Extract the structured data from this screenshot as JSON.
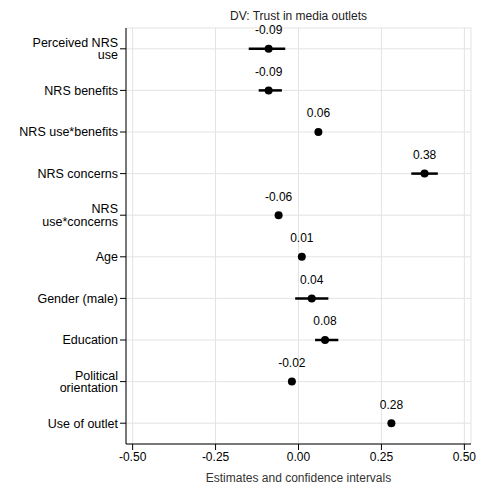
{
  "chart_data": {
    "type": "scatter",
    "title": "DV: Trust in media outlets",
    "x_label": "Estimates and confidence intervals",
    "categories": [
      "Perceived NRS use",
      "NRS benefits",
      "NRS use*benefits",
      "NRS concerns",
      "NRS use*concerns",
      "Age",
      "Gender (male)",
      "Education",
      "Political orientation",
      "Use of outlet"
    ],
    "values": [
      -0.09,
      -0.09,
      0.06,
      0.38,
      -0.06,
      0.01,
      0.04,
      0.08,
      -0.02,
      0.28
    ],
    "lower": [
      -0.15,
      -0.12,
      0.05,
      0.34,
      -0.07,
      0.0,
      -0.01,
      0.05,
      -0.03,
      0.27
    ],
    "upper": [
      -0.04,
      -0.05,
      0.07,
      0.42,
      -0.05,
      0.01,
      0.09,
      0.12,
      -0.01,
      0.29
    ],
    "xlim": [
      -0.52,
      0.52
    ],
    "xticks": [
      {
        "value": -0.5,
        "label": "-0.50"
      },
      -0.25,
      {
        "value": 0,
        "label": "0.00"
      },
      0.25,
      {
        "value": 0.5,
        "label": "0.50"
      }
    ],
    "grid": true,
    "data_labels": true,
    "color": "#000000"
  }
}
